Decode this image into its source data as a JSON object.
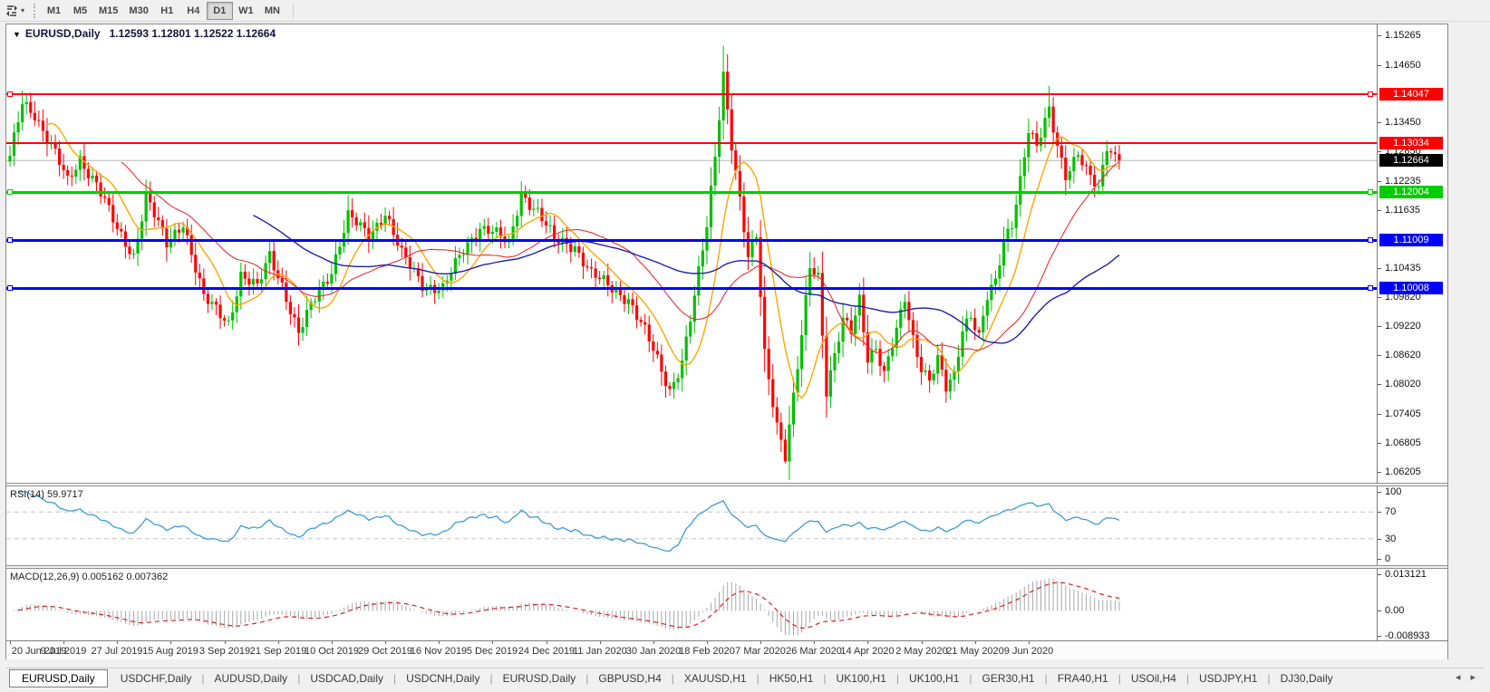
{
  "toolbar": {
    "caret_glyph": "▾",
    "timeframes": [
      "M1",
      "M5",
      "M15",
      "M30",
      "H1",
      "H4",
      "D1",
      "W1",
      "MN"
    ],
    "active": "D1"
  },
  "chart": {
    "dropdown_glyph": "▼",
    "symbol": "EURUSD,Daily",
    "ohlc": "1.12593 1.12801 1.12522 1.12664"
  },
  "price_axis": {
    "ticks": [
      "1.15265",
      "1.14650",
      "1.13450",
      "1.12850",
      "1.12235",
      "1.11635",
      "1.10435",
      "1.09820",
      "1.09220",
      "1.08620",
      "1.08020",
      "1.07405",
      "1.06805",
      "1.06205"
    ]
  },
  "indicators": {
    "rsi": {
      "label": "RSI(14) 59.9717",
      "value": "59.9717",
      "axis": [
        {
          "text": "100",
          "v": 100
        },
        {
          "text": "70",
          "v": 70
        },
        {
          "text": "30",
          "v": 30
        },
        {
          "text": "0",
          "v": 0
        }
      ],
      "levels": [
        70,
        30
      ],
      "line_color": "#3E9BD8"
    },
    "macd": {
      "label": "MACD(12,26,9) 0.005162 0.007362",
      "values": "0.005162 0.007362",
      "axis": [
        {
          "text": "0.013121",
          "v": 0.013121
        },
        {
          "text": "0.00",
          "v": 0
        },
        {
          "text": "-0.008933",
          "v": -0.008933
        }
      ],
      "hist_color": "#A8A8A8",
      "signal_color": "#E02020"
    }
  },
  "date_axis": {
    "labels": [
      "20 Jun 2019",
      "9 Jul 2019",
      "27 Jul 2019",
      "15 Aug 2019",
      "3 Sep 2019",
      "21 Sep 2019",
      "10 Oct 2019",
      "29 Oct 2019",
      "16 Nov 2019",
      "5 Dec 2019",
      "24 Dec 2019",
      "11 Jan 2020",
      "30 Jan 2020",
      "18 Feb 2020",
      "7 Mar 2020",
      "26 Mar 2020",
      "14 Apr 2020",
      "2 May 2020",
      "21 May 2020",
      "9 Jun 2020"
    ]
  },
  "tab_bar": {
    "tabs": [
      {
        "label": "EURUSD,Daily",
        "active": true
      },
      {
        "label": "USDCHF,Daily",
        "active": false
      },
      {
        "label": "AUDUSD,Daily",
        "active": false
      },
      {
        "label": "USDCAD,Daily",
        "active": false
      },
      {
        "label": "USDCNH,Daily",
        "active": false
      },
      {
        "label": "EURUSD,Daily",
        "active": false
      },
      {
        "label": "GBPUSD,H4",
        "active": false
      },
      {
        "label": "XAUUSD,H1",
        "active": false
      },
      {
        "label": "HK50,H1",
        "active": false
      },
      {
        "label": "UK100,H1",
        "active": false
      },
      {
        "label": "UK100,H1",
        "active": false
      },
      {
        "label": "GER30,H1",
        "active": false
      },
      {
        "label": "FRA40,H1",
        "active": false
      },
      {
        "label": "USOil,H4",
        "active": false
      },
      {
        "label": "USDJPY,H1",
        "active": false
      },
      {
        "label": "DJ30,Daily",
        "active": false
      }
    ],
    "separator": "|",
    "scroll_left": "◂",
    "scroll_right": "▸"
  },
  "chart_data": {
    "type": "candlestick",
    "symbol": "EURUSD",
    "timeframe": "Daily",
    "n_candles": 270,
    "date_step": 13,
    "ylim": [
      1.0597,
      1.1549
    ],
    "close": 1.12664,
    "current_price": {
      "value": 1.12664,
      "label": "1.12664",
      "line_color": "#B8B8B8",
      "label_bg": "#000000"
    },
    "colors": {
      "up": "#00C000",
      "down": "#FF0000"
    },
    "keypoints": [
      [
        0,
        1.127
      ],
      [
        3,
        1.1385,
        1.1412
      ],
      [
        6,
        1.1365
      ],
      [
        11,
        1.128
      ],
      [
        14,
        1.122
      ],
      [
        17,
        1.127
      ],
      [
        21,
        1.122
      ],
      [
        26,
        1.112
      ],
      [
        30,
        1.107
      ],
      [
        33,
        1.1195
      ],
      [
        38,
        1.109
      ],
      [
        42,
        1.114
      ],
      [
        47,
        1.098
      ],
      [
        53,
        1.093
      ],
      [
        56,
        1.103
      ],
      [
        60,
        1.1
      ],
      [
        63,
        1.107
      ],
      [
        66,
        1.101
      ],
      [
        70,
        1.0905
      ],
      [
        74,
        1.098
      ],
      [
        78,
        1.104
      ],
      [
        82,
        1.115
      ],
      [
        87,
        1.111
      ],
      [
        91,
        1.116
      ],
      [
        95,
        1.107
      ],
      [
        100,
        1.101
      ],
      [
        105,
        1.1
      ],
      [
        110,
        1.108
      ],
      [
        114,
        1.113
      ],
      [
        117,
        1.112
      ],
      [
        121,
        1.109
      ],
      [
        124,
        1.12
      ],
      [
        128,
        1.116
      ],
      [
        132,
        1.11
      ],
      [
        137,
        1.109
      ],
      [
        141,
        1.103
      ],
      [
        146,
        1.1
      ],
      [
        150,
        1.098
      ],
      [
        154,
        1.091
      ],
      [
        158,
        1.083
      ],
      [
        160,
        1.079
      ],
      [
        163,
        1.085
      ],
      [
        166,
        1.098
      ],
      [
        169,
        1.113
      ],
      [
        171,
        1.128
      ],
      [
        173,
        1.145,
        1.1505
      ],
      [
        175,
        1.13
      ],
      [
        177,
        1.118
      ],
      [
        179,
        1.106
      ],
      [
        181,
        1.111
      ],
      [
        183,
        1.087
      ],
      [
        186,
        1.072
      ],
      [
        188,
        1.065,
        null,
        1.0637
      ],
      [
        190,
        1.077
      ],
      [
        192,
        1.09
      ],
      [
        194,
        1.105
      ],
      [
        196,
        1.103
      ],
      [
        198,
        1.079
      ],
      [
        200,
        1.086
      ],
      [
        202,
        1.093
      ],
      [
        204,
        1.091
      ],
      [
        206,
        1.098
      ],
      [
        208,
        1.086
      ],
      [
        210,
        1.088
      ],
      [
        212,
        1.082
      ],
      [
        215,
        1.091
      ],
      [
        217,
        1.098
      ],
      [
        219,
        1.09
      ],
      [
        221,
        1.084
      ],
      [
        223,
        1.081
      ],
      [
        225,
        1.085
      ],
      [
        227,
        1.079
      ],
      [
        229,
        1.082
      ],
      [
        231,
        1.092
      ],
      [
        233,
        1.095
      ],
      [
        235,
        1.09
      ],
      [
        237,
        1.098
      ],
      [
        239,
        1.101
      ],
      [
        241,
        1.11
      ],
      [
        243,
        1.114
      ],
      [
        245,
        1.123
      ],
      [
        247,
        1.133
      ],
      [
        249,
        1.129
      ],
      [
        252,
        1.137,
        1.1422
      ],
      [
        254,
        1.13
      ],
      [
        256,
        1.124
      ],
      [
        259,
        1.128
      ],
      [
        261,
        1.124
      ],
      [
        264,
        1.1205,
        null,
        1.1195
      ],
      [
        266,
        1.13
      ],
      [
        269,
        1.12664
      ]
    ],
    "moving_averages": [
      {
        "period": 10,
        "color": "#FFA500",
        "width": 1.4
      },
      {
        "period": 28,
        "color": "#E83030",
        "width": 1.1
      },
      {
        "period": 60,
        "color": "#1E22AA",
        "width": 1.4
      }
    ],
    "hlines": [
      {
        "price": 1.14047,
        "label": "1.14047",
        "color": "#FF0000",
        "thickness": 2,
        "selected": true
      },
      {
        "price": 1.13034,
        "label": "1.13034",
        "color": "#FF0000",
        "thickness": 2,
        "selected": false
      },
      {
        "price": 1.12004,
        "label": "1.12004",
        "color": "#00CC00",
        "thickness": 3,
        "selected": true
      },
      {
        "price": 1.11009,
        "label": "1.11009",
        "color": "#0000FF",
        "thickness": 3,
        "selected": true
      },
      {
        "price": 1.10008,
        "label": "1.10008",
        "color": "#0000FF",
        "thickness": 3,
        "selected": true
      }
    ],
    "rsi_last": 59.9717,
    "macd_last": [
      0.005162,
      0.007362
    ],
    "macd_ylim": [
      -0.008933,
      0.013121
    ]
  }
}
